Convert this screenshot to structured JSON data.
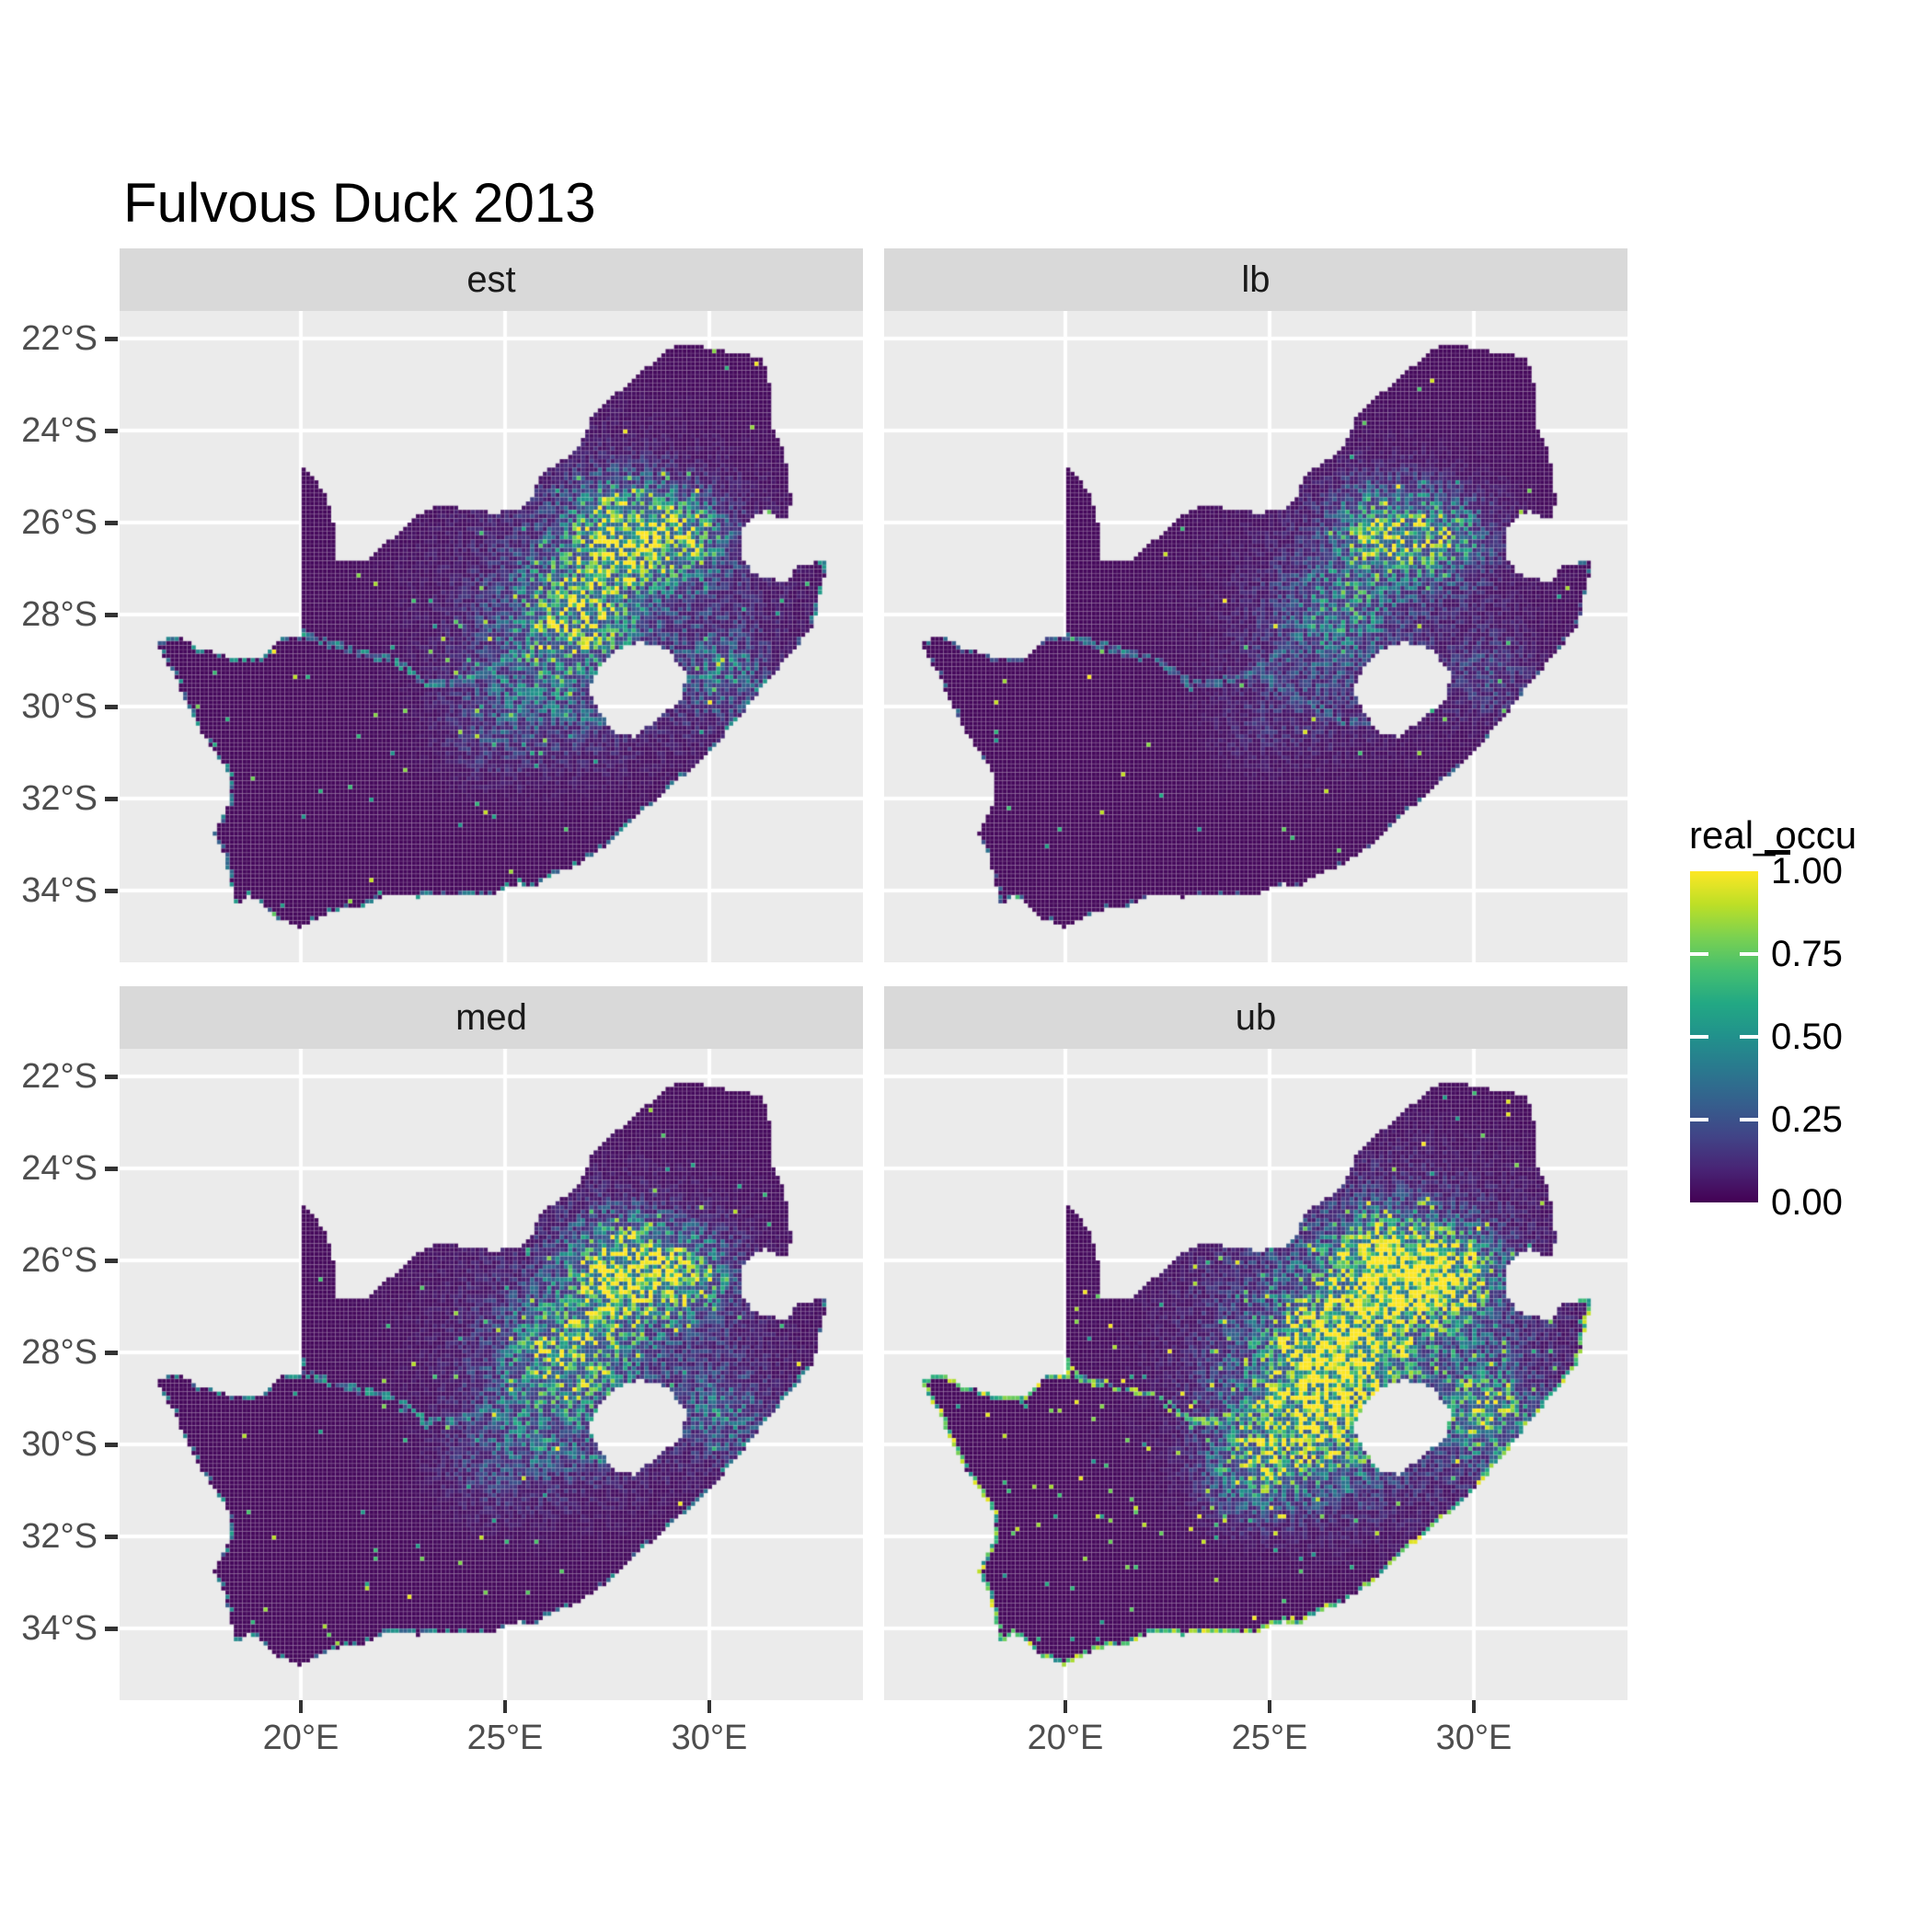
{
  "chart_data": {
    "type": "map",
    "title": "Fulvous Duck 2013",
    "region": "South Africa",
    "variable": "real_occu",
    "facets": [
      {
        "id": "est",
        "label": "est",
        "seed": 101,
        "amps": [
          0.22,
          1.0,
          0.7,
          0.65,
          0.3,
          0.35,
          0.12
        ],
        "speckle": 0.022,
        "river": 0.55,
        "rim_p": 0.5,
        "rim_v": 0.5,
        "rim_north": true
      },
      {
        "id": "lb",
        "label": "lb",
        "seed": 202,
        "amps": [
          0.1,
          0.8,
          0.5,
          0.4,
          0.12,
          0.18,
          0.05
        ],
        "speckle": 0.013,
        "river": 0.4,
        "rim_p": 0.25,
        "rim_v": 0.35,
        "rim_north": true
      },
      {
        "id": "med",
        "label": "med",
        "seed": 303,
        "amps": [
          0.2,
          1.1,
          0.75,
          0.7,
          0.32,
          0.35,
          0.12
        ],
        "speckle": 0.022,
        "river": 0.55,
        "rim_p": 0.45,
        "rim_v": 0.5,
        "rim_north": true
      },
      {
        "id": "ub",
        "label": "ub",
        "seed": 404,
        "amps": [
          0.45,
          1.35,
          1.05,
          1.05,
          0.85,
          0.75,
          0.5
        ],
        "speckle": 0.05,
        "river": 0.85,
        "rim_p": 0.9,
        "rim_v": 0.9,
        "rim_north": true
      }
    ],
    "legend": {
      "title": "real_occu",
      "ticks": [
        "1.00",
        "0.75",
        "0.50",
        "0.25",
        "0.00"
      ],
      "values": [
        1.0,
        0.75,
        0.5,
        0.25,
        0.0
      ]
    },
    "x_axis": {
      "labels": [
        "20°E",
        "25°E",
        "30°E"
      ],
      "lons": [
        20,
        25,
        30
      ]
    },
    "y_axis": {
      "labels": [
        "22°S",
        "24°S",
        "26°S",
        "28°S",
        "30°S",
        "32°S",
        "34°S"
      ],
      "lats": [
        -22,
        -24,
        -26,
        -28,
        -30,
        -32,
        -34
      ]
    },
    "value_range": [
      0.0,
      1.0
    ],
    "geo": {
      "outline": [
        [
          16.45,
          -28.58
        ],
        [
          17.05,
          -28.45
        ],
        [
          17.4,
          -28.7
        ],
        [
          18.2,
          -28.9
        ],
        [
          19.0,
          -28.95
        ],
        [
          19.55,
          -28.5
        ],
        [
          19.99,
          -28.45
        ],
        [
          19.99,
          -24.77
        ],
        [
          20.35,
          -25.05
        ],
        [
          20.65,
          -25.45
        ],
        [
          20.85,
          -26.15
        ],
        [
          20.9,
          -26.8
        ],
        [
          21.6,
          -26.85
        ],
        [
          22.15,
          -26.4
        ],
        [
          22.85,
          -25.85
        ],
        [
          23.45,
          -25.6
        ],
        [
          24.0,
          -25.7
        ],
        [
          24.75,
          -25.8
        ],
        [
          25.35,
          -25.7
        ],
        [
          25.65,
          -25.45
        ],
        [
          25.9,
          -24.9
        ],
        [
          26.4,
          -24.65
        ],
        [
          26.85,
          -24.3
        ],
        [
          27.15,
          -23.65
        ],
        [
          27.7,
          -23.22
        ],
        [
          28.25,
          -22.8
        ],
        [
          29.05,
          -22.2
        ],
        [
          29.45,
          -22.1
        ],
        [
          29.9,
          -22.2
        ],
        [
          30.55,
          -22.3
        ],
        [
          31.3,
          -22.4
        ],
        [
          31.55,
          -23.2
        ],
        [
          31.55,
          -23.9
        ],
        [
          31.8,
          -24.4
        ],
        [
          31.95,
          -24.9
        ],
        [
          32.0,
          -25.55
        ],
        [
          31.95,
          -25.95
        ],
        [
          31.3,
          -25.75
        ],
        [
          30.85,
          -26.05
        ],
        [
          30.8,
          -26.75
        ],
        [
          31.05,
          -27.1
        ],
        [
          31.6,
          -27.25
        ],
        [
          31.95,
          -27.3
        ],
        [
          32.15,
          -26.9
        ],
        [
          32.9,
          -26.85
        ],
        [
          32.55,
          -28.2
        ],
        [
          32.05,
          -28.8
        ],
        [
          31.3,
          -29.55
        ],
        [
          30.7,
          -30.3
        ],
        [
          30.0,
          -30.95
        ],
        [
          29.25,
          -31.6
        ],
        [
          28.4,
          -32.25
        ],
        [
          27.6,
          -32.95
        ],
        [
          26.85,
          -33.4
        ],
        [
          26.0,
          -33.75
        ],
        [
          25.65,
          -33.95
        ],
        [
          25.3,
          -33.85
        ],
        [
          24.8,
          -34.05
        ],
        [
          24.0,
          -34.1
        ],
        [
          23.35,
          -34.05
        ],
        [
          22.9,
          -34.15
        ],
        [
          22.2,
          -34.05
        ],
        [
          21.5,
          -34.35
        ],
        [
          20.75,
          -34.45
        ],
        [
          20.0,
          -34.82
        ],
        [
          19.4,
          -34.6
        ],
        [
          19.1,
          -34.35
        ],
        [
          18.75,
          -34.1
        ],
        [
          18.45,
          -34.35
        ],
        [
          18.3,
          -33.9
        ],
        [
          18.1,
          -33.15
        ],
        [
          17.85,
          -32.75
        ],
        [
          18.3,
          -32.05
        ],
        [
          18.2,
          -31.4
        ],
        [
          17.75,
          -30.8
        ],
        [
          17.3,
          -30.15
        ],
        [
          16.95,
          -29.4
        ],
        [
          16.65,
          -28.95
        ]
      ],
      "lesotho": [
        [
          27.05,
          -29.6
        ],
        [
          27.35,
          -29.05
        ],
        [
          27.75,
          -28.75
        ],
        [
          28.3,
          -28.6
        ],
        [
          28.95,
          -28.75
        ],
        [
          29.45,
          -29.3
        ],
        [
          29.3,
          -29.85
        ],
        [
          28.75,
          -30.25
        ],
        [
          28.15,
          -30.65
        ],
        [
          27.7,
          -30.55
        ],
        [
          27.35,
          -30.2
        ]
      ],
      "sea_coast": [
        [
          32.9,
          -26.85
        ],
        [
          32.55,
          -28.2
        ],
        [
          32.05,
          -28.8
        ],
        [
          31.3,
          -29.55
        ],
        [
          30.7,
          -30.3
        ],
        [
          30.0,
          -30.95
        ],
        [
          29.25,
          -31.6
        ],
        [
          28.4,
          -32.25
        ],
        [
          27.6,
          -32.95
        ],
        [
          26.85,
          -33.4
        ],
        [
          26.0,
          -33.75
        ],
        [
          25.65,
          -33.95
        ],
        [
          25.3,
          -33.85
        ],
        [
          24.8,
          -34.05
        ],
        [
          24.0,
          -34.1
        ],
        [
          23.35,
          -34.05
        ],
        [
          22.9,
          -34.15
        ],
        [
          22.2,
          -34.05
        ],
        [
          21.5,
          -34.35
        ],
        [
          20.75,
          -34.45
        ],
        [
          20.0,
          -34.82
        ],
        [
          19.4,
          -34.6
        ],
        [
          19.1,
          -34.35
        ],
        [
          18.75,
          -34.1
        ],
        [
          18.45,
          -34.35
        ],
        [
          18.3,
          -33.9
        ],
        [
          18.1,
          -33.15
        ],
        [
          17.85,
          -32.75
        ],
        [
          18.3,
          -32.05
        ],
        [
          18.2,
          -31.4
        ],
        [
          17.75,
          -30.8
        ],
        [
          17.3,
          -30.15
        ],
        [
          16.95,
          -29.4
        ],
        [
          16.65,
          -28.95
        ],
        [
          16.45,
          -28.58
        ]
      ],
      "north_border": [
        [
          16.45,
          -28.58
        ],
        [
          17.05,
          -28.45
        ],
        [
          17.4,
          -28.7
        ],
        [
          18.2,
          -28.9
        ],
        [
          19.0,
          -28.95
        ],
        [
          19.55,
          -28.5
        ],
        [
          19.99,
          -28.45
        ]
      ],
      "rivers": [
        [
          [
            19.99,
            -28.45
          ],
          [
            20.8,
            -28.65
          ],
          [
            21.5,
            -28.85
          ],
          [
            22.3,
            -29.0
          ],
          [
            23.1,
            -29.55
          ],
          [
            23.9,
            -29.45
          ],
          [
            24.65,
            -29.25
          ],
          [
            25.4,
            -29.65
          ],
          [
            26.1,
            -30.0
          ],
          [
            26.9,
            -30.35
          ],
          [
            27.4,
            -30.35
          ]
        ],
        [
          [
            24.65,
            -29.25
          ],
          [
            25.3,
            -28.75
          ],
          [
            25.9,
            -28.25
          ],
          [
            26.5,
            -27.75
          ],
          [
            26.95,
            -27.3
          ],
          [
            27.35,
            -27.0
          ],
          [
            27.7,
            -26.85
          ],
          [
            28.1,
            -26.9
          ]
        ]
      ],
      "clusters": [
        {
          "lon": 27.6,
          "lat": -27.6,
          "sx": 3.6,
          "sy": 2.9
        },
        {
          "lon": 27.85,
          "lat": -26.2,
          "sx": 1.15,
          "sy": 0.95
        },
        {
          "lon": 29.35,
          "lat": -26.35,
          "sx": 1.05,
          "sy": 0.85
        },
        {
          "lon": 26.7,
          "lat": -27.9,
          "sx": 1.35,
          "sy": 1.05
        },
        {
          "lon": 26.0,
          "lat": -29.4,
          "sx": 1.7,
          "sy": 1.35
        },
        {
          "lon": 30.35,
          "lat": -29.35,
          "sx": 0.95,
          "sy": 0.85
        },
        {
          "lon": 24.6,
          "lat": -30.6,
          "sx": 1.1,
          "sy": 0.9
        }
      ]
    }
  },
  "colors": {
    "background": "#FFFFFF",
    "panel": "#EBEBEB",
    "strip": "#D9D9D9",
    "grid": "#FFFFFF",
    "axis_text": "#4D4D4D",
    "tick_mark": "#333333",
    "title_text": "#000000",
    "viridis_stops": [
      [
        0.0,
        "#440154"
      ],
      [
        0.1,
        "#482475"
      ],
      [
        0.2,
        "#414487"
      ],
      [
        0.3,
        "#355f8d"
      ],
      [
        0.4,
        "#2a788e"
      ],
      [
        0.5,
        "#21918c"
      ],
      [
        0.6,
        "#22a884"
      ],
      [
        0.7,
        "#44bf70"
      ],
      [
        0.8,
        "#7ad151"
      ],
      [
        0.9,
        "#bddf26"
      ],
      [
        1.0,
        "#fde725"
      ]
    ]
  }
}
